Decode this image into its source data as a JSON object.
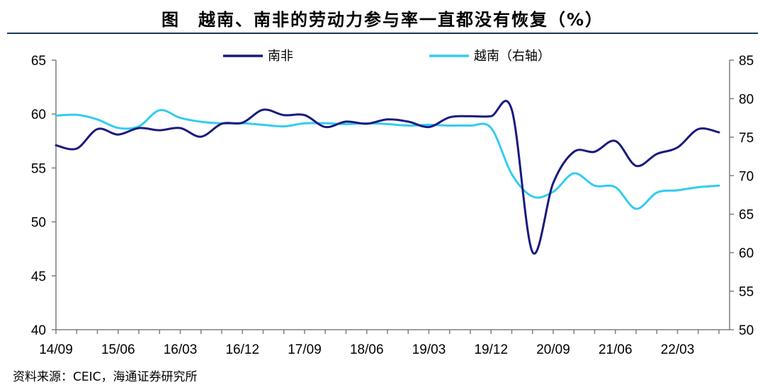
{
  "title": "图　越南、南非的劳动力参与率一直都没有恢复（%）",
  "source": "资料来源：CEIC，海通证券研究所",
  "colors": {
    "south_africa": "#1a1a80",
    "vietnam": "#33ccf0",
    "axis": "#7f7f7f"
  },
  "chart_data": {
    "type": "line",
    "x_tick_labels": [
      "14/09",
      "15/06",
      "16/03",
      "16/12",
      "17/09",
      "18/06",
      "19/03",
      "19/12",
      "20/09",
      "21/06",
      "22/03"
    ],
    "y_left": {
      "range": [
        40,
        65
      ],
      "ticks": [
        "40",
        "45",
        "50",
        "55",
        "60",
        "65"
      ]
    },
    "y_right": {
      "range": [
        50,
        85
      ],
      "ticks": [
        "50",
        "55",
        "60",
        "65",
        "70",
        "75",
        "80",
        "85"
      ]
    },
    "legend_placement": "top-center",
    "series": [
      {
        "name": "南非",
        "axis": "left",
        "x": [
          "14/09",
          "14/12",
          "15/03",
          "15/06",
          "15/09",
          "15/12",
          "16/03",
          "16/06",
          "16/09",
          "16/12",
          "17/03",
          "17/06",
          "17/09",
          "17/12",
          "18/03",
          "18/06",
          "18/09",
          "18/12",
          "19/03",
          "19/06",
          "19/09",
          "19/12",
          "20/03",
          "20/06",
          "20/09",
          "20/12",
          "21/03",
          "21/06",
          "21/09",
          "21/12",
          "22/03",
          "22/06",
          "22/09"
        ],
        "values": [
          57.1,
          56.8,
          58.6,
          58.1,
          58.7,
          58.5,
          58.7,
          57.9,
          59.1,
          59.2,
          60.4,
          59.9,
          59.9,
          58.8,
          59.3,
          59.1,
          59.5,
          59.3,
          58.8,
          59.7,
          59.8,
          59.8,
          60.4,
          47.2,
          53.6,
          56.5,
          56.5,
          57.5,
          55.2,
          56.3,
          56.9,
          58.6,
          58.3
        ]
      },
      {
        "name": "越南（右轴）",
        "axis": "right",
        "x": [
          "14/09",
          "14/12",
          "15/03",
          "15/06",
          "15/09",
          "15/12",
          "16/03",
          "16/06",
          "16/09",
          "16/12",
          "17/03",
          "17/06",
          "17/09",
          "17/12",
          "18/03",
          "18/06",
          "18/09",
          "18/12",
          "19/03",
          "19/06",
          "19/09",
          "19/12",
          "20/03",
          "20/06",
          "20/09",
          "20/12",
          "21/03",
          "21/06",
          "21/09",
          "21/12",
          "22/03",
          "22/06",
          "22/09"
        ],
        "values": [
          77.8,
          77.9,
          77.3,
          76.2,
          76.4,
          78.5,
          77.5,
          77.0,
          76.8,
          76.8,
          76.6,
          76.4,
          76.8,
          76.8,
          76.7,
          76.8,
          76.7,
          76.5,
          76.6,
          76.5,
          76.5,
          76.2,
          70.2,
          67.3,
          67.9,
          70.3,
          68.7,
          68.5,
          65.7,
          67.8,
          68.1,
          68.5,
          68.7
        ]
      }
    ]
  }
}
